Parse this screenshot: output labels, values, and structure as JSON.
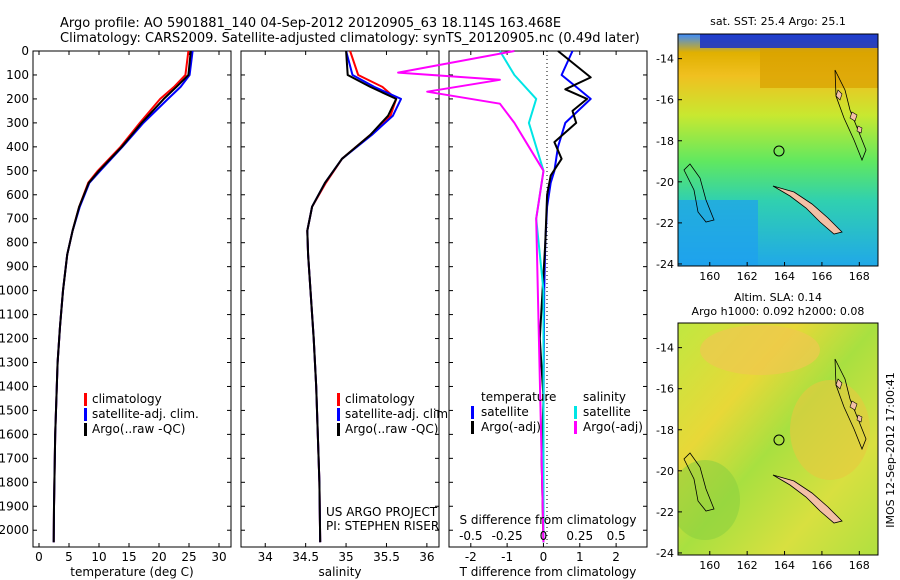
{
  "header": {
    "line1": "Argo profile: AO 5901881_140 04-Sep-2012 20120905_63 18.114S 163.468E",
    "line2": "Climatology: CARS2009. Satellite-adjusted climatology: synTS_20120905.nc (0.49d later)"
  },
  "credit": "IMOS 12-Sep-2012 17:00:41",
  "colors": {
    "climatology": "#ff0000",
    "satellite": "#0000ff",
    "argo": "#000000",
    "sal_sat": "#00e5e5",
    "sal_argo": "#ff00ff",
    "land": "#f3c0a6"
  },
  "chart_data": [
    {
      "type": "line",
      "id": "temperature",
      "xlabel": "temperature (deg C)",
      "ylabel": "",
      "xlim": [
        -1,
        32
      ],
      "ylim": [
        0,
        2070
      ],
      "xticks": [
        "0",
        "5",
        "10",
        "15",
        "20",
        "25",
        "30"
      ],
      "yticks": [
        "0",
        "100",
        "200",
        "300",
        "400",
        "500",
        "600",
        "700",
        "800",
        "900",
        "1000",
        "1100",
        "1200",
        "1300",
        "1400",
        "1500",
        "1600",
        "1700",
        "1800",
        "1900",
        "2000"
      ],
      "legend": [
        "climatology",
        "satellite-adj. clim.",
        "Argo(..raw -QC)"
      ],
      "series": [
        {
          "name": "climatology",
          "color": "#ff0000",
          "x": [
            24.9,
            24.4,
            22.5,
            20.2,
            16.8,
            13.6,
            9.8,
            8.2,
            6.7,
            5.6,
            4.7,
            4.0,
            3.5,
            3.1,
            2.9,
            2.7,
            2.6,
            2.5,
            2.45
          ],
          "y": [
            0,
            100,
            150,
            200,
            300,
            400,
            500,
            550,
            650,
            750,
            850,
            1000,
            1150,
            1300,
            1450,
            1600,
            1750,
            1900,
            2050
          ]
        },
        {
          "name": "satellite-adj. clim.",
          "color": "#0000ff",
          "x": [
            25.6,
            25.1,
            23.6,
            21.5,
            17.4,
            13.9,
            10.2,
            8.4,
            6.8,
            5.6,
            4.7,
            4.0,
            3.5,
            3.1,
            2.9,
            2.7,
            2.6,
            2.5,
            2.45
          ],
          "y": [
            0,
            100,
            150,
            200,
            300,
            400,
            500,
            550,
            650,
            750,
            850,
            1000,
            1150,
            1300,
            1450,
            1600,
            1750,
            1900,
            2050
          ]
        },
        {
          "name": "Argo(..raw -QC)",
          "color": "#000000",
          "x": [
            25.3,
            24.9,
            22.9,
            20.8,
            17.1,
            13.8,
            10.0,
            8.3,
            6.7,
            5.6,
            4.7,
            4.0,
            3.5,
            3.1,
            2.9,
            2.7,
            2.6,
            2.5,
            2.45
          ],
          "y": [
            0,
            100,
            150,
            200,
            300,
            400,
            500,
            550,
            650,
            750,
            850,
            1000,
            1150,
            1300,
            1450,
            1600,
            1750,
            1900,
            2050
          ]
        }
      ]
    },
    {
      "type": "line",
      "id": "salinity",
      "xlabel": "salinity",
      "ylabel": "",
      "xlim": [
        33.7,
        36.15
      ],
      "ylim": [
        0,
        2070
      ],
      "xticks": [
        "34",
        "34.5",
        "35",
        "35.5",
        "36"
      ],
      "legend": [
        "climatology",
        "satellite-adj. clim.",
        "Argo(..raw -QC)"
      ],
      "annotation": [
        "US ARGO PROJECT",
        "PI: STEPHEN RISER"
      ],
      "series": [
        {
          "name": "climatology",
          "color": "#ff0000",
          "x": [
            35.05,
            35.15,
            35.45,
            35.62,
            35.55,
            35.3,
            34.95,
            34.75,
            34.58,
            34.52,
            34.53,
            34.56,
            34.6,
            34.63,
            34.65,
            34.67,
            34.68
          ],
          "y": [
            0,
            100,
            150,
            200,
            270,
            350,
            450,
            550,
            650,
            750,
            850,
            1000,
            1200,
            1400,
            1600,
            1800,
            2050
          ]
        },
        {
          "name": "satellite-adj. clim.",
          "color": "#0000ff",
          "x": [
            35.0,
            35.08,
            35.35,
            35.68,
            35.58,
            35.32,
            34.95,
            34.74,
            34.58,
            34.52,
            34.53,
            34.56,
            34.6,
            34.63,
            34.65,
            34.67,
            34.68
          ],
          "y": [
            0,
            100,
            150,
            200,
            270,
            350,
            450,
            550,
            650,
            750,
            850,
            1000,
            1200,
            1400,
            1600,
            1800,
            2050
          ]
        },
        {
          "name": "Argo(..raw -QC)",
          "color": "#000000",
          "x": [
            35.0,
            35.02,
            35.3,
            35.62,
            35.52,
            35.3,
            34.95,
            34.74,
            34.58,
            34.52,
            34.53,
            34.56,
            34.6,
            34.63,
            34.65,
            34.67,
            34.68
          ],
          "y": [
            0,
            100,
            150,
            200,
            270,
            350,
            450,
            550,
            650,
            750,
            850,
            1000,
            1200,
            1400,
            1600,
            1800,
            2050
          ]
        }
      ]
    },
    {
      "type": "line",
      "id": "differences",
      "xlabel": "T difference from climatology",
      "xlabel_top": "S difference from climatology",
      "xlim": [
        -2.6,
        2.85
      ],
      "ylim": [
        0,
        2070
      ],
      "xticks": [
        "-2",
        "-1",
        "0",
        "1",
        "2"
      ],
      "xticks_s": [
        "-0.5",
        "-0.25",
        "0",
        "0.25",
        "0.5"
      ],
      "legend_left_title": "temperature",
      "legend_right_title": "salinity",
      "legend": [
        "satellite",
        "Argo(-adj)",
        "satellite",
        "Argo(-adj)"
      ],
      "series": [
        {
          "name": "satellite",
          "quantity": "temperature",
          "color": "#0000ff",
          "x": [
            0.8,
            0.5,
            0.9,
            1.3,
            0.6,
            0.4,
            0.3,
            0.2,
            0.1,
            0.05,
            0.02,
            0,
            0
          ],
          "y": [
            0,
            100,
            150,
            200,
            300,
            400,
            500,
            550,
            650,
            800,
            1000,
            1500,
            2050
          ]
        },
        {
          "name": "Argo(-adj)",
          "quantity": "temperature",
          "color": "#000000",
          "x": [
            0.4,
            1.3,
            0.6,
            1.2,
            0.8,
            0.9,
            0.3,
            0.5,
            0.2,
            0.1,
            0.05,
            -0.1,
            0,
            -0.05,
            0
          ],
          "y": [
            0,
            110,
            160,
            200,
            250,
            300,
            380,
            450,
            520,
            600,
            800,
            1200,
            1450,
            1700,
            2050
          ]
        },
        {
          "name": "satellite",
          "quantity": "salinity",
          "color": "#00e5e5",
          "x": [
            -0.3,
            -0.2,
            -0.05,
            -0.1,
            0,
            -0.05,
            0,
            0,
            0
          ],
          "y": [
            0,
            100,
            200,
            300,
            500,
            700,
            1000,
            1500,
            2050
          ]
        },
        {
          "name": "Argo(-adj)",
          "quantity": "salinity",
          "color": "#ff00ff",
          "x": [
            -0.2,
            -1.0,
            -0.3,
            -0.8,
            -0.3,
            -0.2,
            -0.1,
            0,
            -0.05,
            0
          ],
          "y": [
            0,
            90,
            120,
            170,
            220,
            300,
            400,
            500,
            700,
            2050
          ]
        }
      ]
    },
    {
      "type": "heatmap",
      "id": "sst-map",
      "title": "sat. SST: 25.4 Argo: 25.1",
      "xlim": [
        158.3,
        169.0
      ],
      "ylim": [
        -24.1,
        -12.8
      ],
      "xticks": [
        "160",
        "162",
        "164",
        "166",
        "168"
      ],
      "yticks": [
        "-14",
        "-16",
        "-18",
        "-20",
        "-22",
        "-24"
      ]
    },
    {
      "type": "heatmap",
      "id": "sla-map",
      "title_line1": "Altim. SLA: 0.14",
      "title_line2": "Argo h1000: 0.092 h2000: 0.08",
      "xlim": [
        158.3,
        169.0
      ],
      "ylim": [
        -24.1,
        -12.8
      ],
      "xticks": [
        "160",
        "162",
        "164",
        "166",
        "168"
      ],
      "yticks": [
        "-14",
        "-16",
        "-18",
        "-20",
        "-22",
        "-24"
      ]
    }
  ]
}
